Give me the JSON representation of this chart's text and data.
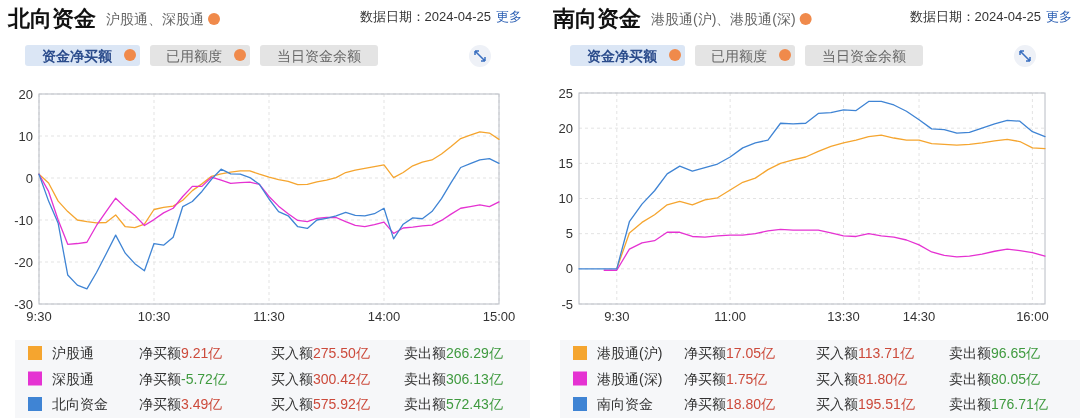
{
  "chart_data": [
    {
      "type": "line",
      "title": "北向资金",
      "subtitle": "沪股通、深股通",
      "annotations": [
        "数据日期：2024-04-25",
        "更多",
        "资金净买额",
        "已用额度",
        "当日资金余额",
        "净买额9.21亿",
        "买入额275.50亿",
        "卖出额266.29亿",
        "净买额-5.72亿",
        "买入额300.42亿",
        "卖出额306.13亿",
        "净买额3.49亿",
        "买入额575.92亿",
        "卖出额572.43亿"
      ],
      "categories": [
        "9:30",
        null,
        null,
        null,
        null,
        null,
        null,
        null,
        null,
        null,
        null,
        null,
        "10:30",
        null,
        null,
        null,
        null,
        null,
        null,
        null,
        null,
        null,
        null,
        null,
        "11:30",
        null,
        null,
        null,
        null,
        null,
        null,
        null,
        null,
        null,
        null,
        null,
        "14:00",
        null,
        null,
        null,
        null,
        null,
        null,
        null,
        null,
        null,
        null,
        null,
        "15:00"
      ],
      "ylim": [
        -30,
        20
      ],
      "yticks": [
        -30,
        -20,
        -10,
        0,
        10,
        20
      ],
      "grid": true,
      "legend": "bottom",
      "series": [
        {
          "name": "沪股通",
          "color": "#f5a52f",
          "values": [
            0.9,
            -1.2,
            -5.5,
            -8,
            -10,
            -10.4,
            -10.7,
            -10.6,
            -8.8,
            -11.6,
            -11.8,
            -11,
            -7.5,
            -7,
            -6.7,
            -5.3,
            -3,
            -1.4,
            0.4,
            1,
            1.4,
            1.7,
            1.7,
            0.9,
            0.2,
            -0.4,
            -0.8,
            -1.6,
            -1.5,
            -0.9,
            -0.5,
            0.1,
            1.3,
            1.9,
            2.3,
            2.7,
            3.1,
            0.1,
            1.3,
            2.9,
            3.8,
            4.3,
            5.7,
            7.5,
            9.4,
            10.2,
            11,
            10.7,
            9.2
          ]
        },
        {
          "name": "深股通",
          "color": "#e532d2",
          "values": [
            0.9,
            -3.2,
            -10,
            -15.8,
            -15.6,
            -15.3,
            -11.3,
            -8,
            -4.8,
            -7,
            -8.9,
            -11.3,
            -9.9,
            -8.3,
            -7.2,
            -4.4,
            -2,
            -2,
            0.2,
            -0.5,
            -1.3,
            -1.1,
            -1,
            -1.5,
            -4.4,
            -6.7,
            -8.5,
            -10.1,
            -10.4,
            -9.6,
            -9.4,
            -9.4,
            -10.4,
            -11.3,
            -11.6,
            -11.1,
            -10.5,
            -13.2,
            -11.9,
            -11.7,
            -11.4,
            -11.2,
            -10.1,
            -8.6,
            -7.2,
            -6.8,
            -6.4,
            -6.8,
            -5.7
          ]
        },
        {
          "name": "北向资金",
          "color": "#3f84d4",
          "values": [
            0.9,
            -5.5,
            -10.8,
            -23.1,
            -25.5,
            -26.4,
            -22.5,
            -18.1,
            -13.6,
            -17.9,
            -20.4,
            -22.1,
            -15.6,
            -16,
            -14.1,
            -6.8,
            -5.6,
            -3.2,
            -0.3,
            2.1,
            1,
            0.9,
            0.1,
            -1.5,
            -5,
            -8,
            -9,
            -11.6,
            -12,
            -10,
            -9.6,
            -9,
            -8.2,
            -8.9,
            -9,
            -8.5,
            -7.2,
            -14.5,
            -11,
            -9.5,
            -9.7,
            -8,
            -4.9,
            -1.1,
            2.5,
            3.4,
            4.3,
            4.6,
            3.5
          ]
        }
      ]
    },
    {
      "type": "line",
      "title": "南向资金",
      "subtitle": "港股通(沪)、港股通(深)",
      "annotations": [
        "数据日期：2024-04-25",
        "更多",
        "资金净买额",
        "已用额度",
        "当日资金余额",
        "净买额17.05亿",
        "买入额113.71亿",
        "卖出额96.65亿",
        "净买额1.75亿",
        "买入额81.80亿",
        "卖出额80.05亿",
        "净买额18.80亿",
        "买入额195.51亿",
        "卖出额176.71亿"
      ],
      "categories": [
        null,
        null,
        null,
        "9:30",
        null,
        null,
        null,
        null,
        null,
        null,
        null,
        null,
        "11:00",
        null,
        null,
        null,
        null,
        null,
        null,
        null,
        null,
        "13:30",
        null,
        null,
        null,
        null,
        null,
        "14:30",
        null,
        null,
        null,
        null,
        null,
        null,
        null,
        null,
        "16:00",
        null
      ],
      "ylim": [
        -5,
        25
      ],
      "yticks": [
        -5,
        0,
        5,
        10,
        15,
        20,
        25
      ],
      "grid": true,
      "legend": "bottom",
      "series": [
        {
          "name": "港股通(沪)",
          "color": "#f5a52f",
          "values": [
            null,
            null,
            null,
            0,
            5.1,
            6.6,
            7.7,
            9.1,
            9.6,
            9.1,
            9.8,
            10.1,
            11.2,
            12.3,
            12.9,
            14.1,
            15,
            15.5,
            15.9,
            16.7,
            17.4,
            17.9,
            18.3,
            18.8,
            19,
            18.6,
            18.3,
            18.3,
            17.8,
            17.7,
            17.6,
            17.7,
            17.9,
            18.2,
            18.4,
            18.1,
            17.2,
            17.1
          ]
        },
        {
          "name": "港股通(深)",
          "color": "#e532d2",
          "values": [
            null,
            null,
            -0.2,
            -0.2,
            2.8,
            3.7,
            4,
            5.2,
            5.2,
            4.6,
            4.5,
            4.7,
            4.8,
            4.8,
            5,
            5.4,
            5.6,
            5.5,
            5.5,
            5.5,
            5.1,
            4.7,
            4.6,
            5,
            4.7,
            4.5,
            4.1,
            3.4,
            2.4,
            1.9,
            1.7,
            1.8,
            2.1,
            2.5,
            2.8,
            2.6,
            2.3,
            1.8
          ]
        },
        {
          "name": "南向资金",
          "color": "#3f84d4",
          "values": [
            0,
            0,
            0,
            0,
            6.7,
            9.2,
            11.1,
            13.5,
            14.6,
            13.9,
            14.4,
            14.9,
            15.9,
            17.2,
            17.9,
            18.3,
            20.7,
            20.6,
            20.7,
            22.1,
            22.2,
            22.6,
            22.5,
            23.8,
            23.8,
            23.3,
            22.4,
            21.2,
            19.9,
            19.8,
            19.3,
            19.4,
            20,
            20.6,
            21.1,
            21,
            19.5,
            18.8
          ]
        }
      ]
    }
  ]
}
